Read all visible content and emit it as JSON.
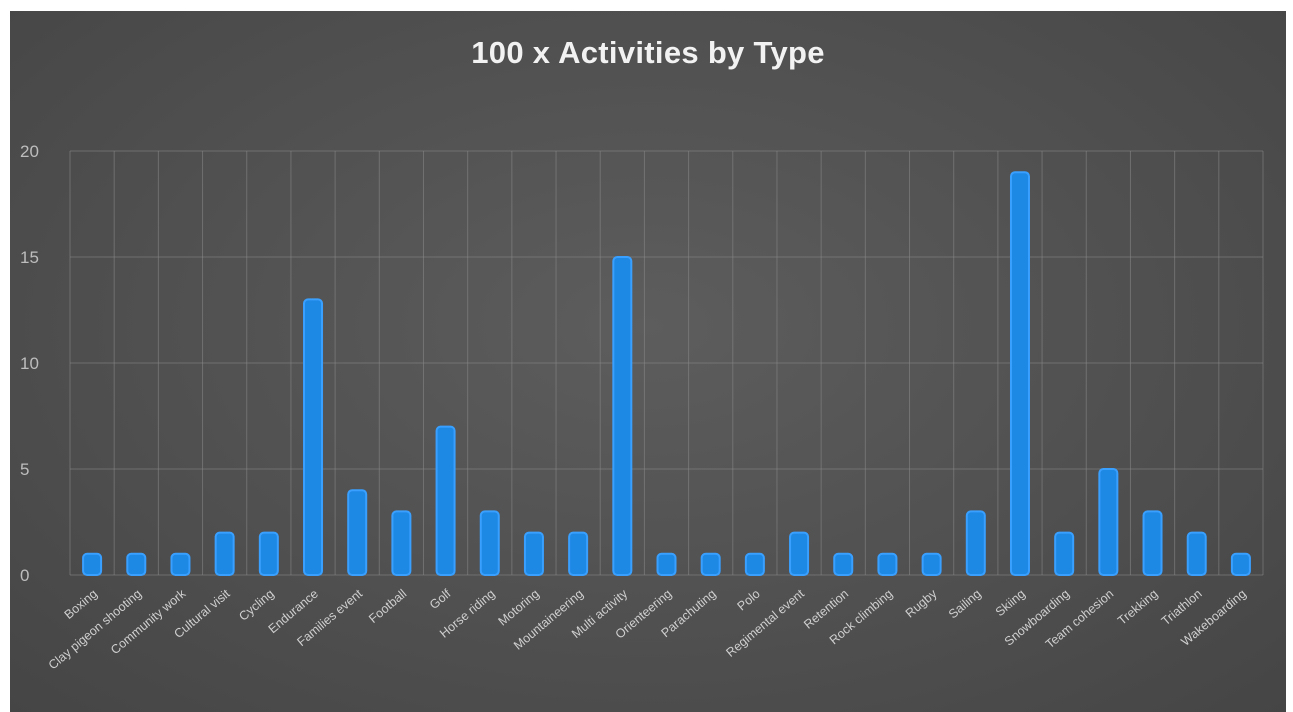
{
  "chart_data": {
    "type": "bar",
    "title": "100 x Activities by Type",
    "xlabel": "",
    "ylabel": "",
    "ylim": [
      0,
      20
    ],
    "yticks": [
      0,
      5,
      10,
      15,
      20
    ],
    "grid": true,
    "bar_color": "#1e88e5",
    "bar_edge_color": "#3aa0ff",
    "categories": [
      "Boxing",
      "Clay pigeon shooting",
      "Community work",
      "Cultural visit",
      "Cycling",
      "Endurance",
      "Families event",
      "Football",
      "Golf",
      "Horse riding",
      "Motoring",
      "Mountaineering",
      "Multi activity",
      "Orienteering",
      "Parachuting",
      "Polo",
      "Regimental event",
      "Retention",
      "Rock climbing",
      "Rugby",
      "Sailing",
      "Skiing",
      "Snowboarding",
      "Team cohesion",
      "Trekking",
      "Triathlon",
      "Wakeboarding"
    ],
    "values": [
      1,
      1,
      1,
      2,
      2,
      13,
      4,
      3,
      7,
      3,
      2,
      2,
      15,
      1,
      1,
      1,
      2,
      1,
      1,
      1,
      3,
      19,
      2,
      5,
      3,
      2,
      1
    ]
  }
}
